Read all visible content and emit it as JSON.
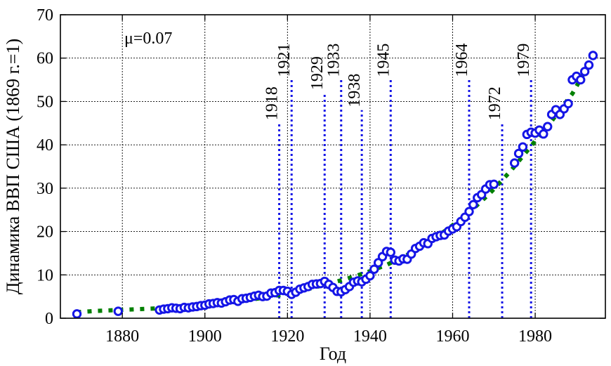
{
  "chart_data": {
    "type": "scatter",
    "xlabel": "Год",
    "ylabel": "Динамика ВВП США (1869 г.=1)",
    "annotation": "μ=0.07",
    "xlim": [
      1865,
      1997
    ],
    "ylim": [
      0,
      70
    ],
    "x_ticks": [
      1880,
      1900,
      1920,
      1940,
      1960,
      1980
    ],
    "y_ticks": [
      0,
      10,
      20,
      30,
      40,
      50,
      60,
      70
    ],
    "grid": true,
    "colors": {
      "observed": "#1515e6",
      "trend": "#008000",
      "events": "#1515e6"
    },
    "event_years": [
      {
        "label": "1918",
        "x": 1918,
        "top": 45
      },
      {
        "label": "1921",
        "x": 1921,
        "top": 55
      },
      {
        "label": "1929",
        "x": 1929,
        "top": 52
      },
      {
        "label": "1933",
        "x": 1933,
        "top": 55
      },
      {
        "label": "1938",
        "x": 1938,
        "top": 48
      },
      {
        "label": "1945",
        "x": 1945,
        "top": 55
      },
      {
        "label": "1964",
        "x": 1964,
        "top": 55
      },
      {
        "label": "1972",
        "x": 1972,
        "top": 45
      },
      {
        "label": "1979",
        "x": 1979,
        "top": 55
      }
    ],
    "series": [
      {
        "values": [
          [
            1869,
            1.0
          ],
          [
            1879,
            1.6
          ],
          [
            1889,
            1.9
          ],
          [
            1890,
            2.1
          ],
          [
            1891,
            2.2
          ],
          [
            1892,
            2.4
          ],
          [
            1893,
            2.3
          ],
          [
            1894,
            2.2
          ],
          [
            1895,
            2.5
          ],
          [
            1896,
            2.4
          ],
          [
            1897,
            2.6
          ],
          [
            1898,
            2.7
          ],
          [
            1899,
            2.9
          ],
          [
            1900,
            3.0
          ],
          [
            1901,
            3.3
          ],
          [
            1902,
            3.4
          ],
          [
            1903,
            3.6
          ],
          [
            1904,
            3.5
          ],
          [
            1905,
            3.8
          ],
          [
            1906,
            4.2
          ],
          [
            1907,
            4.3
          ],
          [
            1908,
            3.9
          ],
          [
            1909,
            4.5
          ],
          [
            1910,
            4.6
          ],
          [
            1911,
            4.8
          ],
          [
            1912,
            5.1
          ],
          [
            1913,
            5.3
          ],
          [
            1914,
            5.0
          ],
          [
            1915,
            5.1
          ],
          [
            1916,
            5.8
          ],
          [
            1917,
            5.9
          ],
          [
            1918,
            6.4
          ],
          [
            1919,
            6.4
          ],
          [
            1920,
            6.2
          ],
          [
            1921,
            5.5
          ],
          [
            1922,
            6.0
          ],
          [
            1923,
            6.7
          ],
          [
            1924,
            7.0
          ],
          [
            1925,
            7.3
          ],
          [
            1926,
            7.8
          ],
          [
            1927,
            7.9
          ],
          [
            1928,
            8.0
          ],
          [
            1929,
            8.5
          ],
          [
            1930,
            7.8
          ],
          [
            1931,
            7.1
          ],
          [
            1932,
            6.2
          ],
          [
            1933,
            6.1
          ],
          [
            1934,
            6.6
          ],
          [
            1935,
            7.3
          ],
          [
            1936,
            8.3
          ],
          [
            1937,
            8.6
          ],
          [
            1938,
            8.4
          ],
          [
            1939,
            9.0
          ],
          [
            1940,
            9.8
          ],
          [
            1941,
            11.3
          ],
          [
            1942,
            12.8
          ],
          [
            1943,
            14.2
          ],
          [
            1944,
            15.4
          ],
          [
            1945,
            15.2
          ],
          [
            1946,
            13.4
          ],
          [
            1947,
            13.2
          ],
          [
            1948,
            13.7
          ],
          [
            1949,
            13.6
          ],
          [
            1950,
            14.8
          ],
          [
            1951,
            16.1
          ],
          [
            1952,
            16.6
          ],
          [
            1953,
            17.4
          ],
          [
            1954,
            17.2
          ],
          [
            1955,
            18.4
          ],
          [
            1956,
            18.8
          ],
          [
            1957,
            19.1
          ],
          [
            1958,
            19.2
          ],
          [
            1959,
            20.1
          ],
          [
            1960,
            20.6
          ],
          [
            1961,
            21.1
          ],
          [
            1962,
            22.3
          ],
          [
            1963,
            23.3
          ],
          [
            1964,
            24.6
          ],
          [
            1965,
            26.2
          ],
          [
            1966,
            27.8
          ],
          [
            1967,
            28.5
          ],
          [
            1968,
            29.8
          ],
          [
            1969,
            30.8
          ],
          [
            1970,
            30.9
          ],
          [
            1975,
            35.8
          ],
          [
            1976,
            38.0
          ],
          [
            1977,
            39.5
          ],
          [
            1978,
            42.4
          ],
          [
            1979,
            42.9
          ],
          [
            1980,
            42.7
          ],
          [
            1981,
            43.4
          ],
          [
            1982,
            42.5
          ],
          [
            1983,
            44.2
          ],
          [
            1984,
            47.0
          ],
          [
            1985,
            48.1
          ],
          [
            1986,
            47.0
          ],
          [
            1987,
            48.3
          ],
          [
            1988,
            49.5
          ],
          [
            1989,
            55.0
          ],
          [
            1990,
            55.8
          ],
          [
            1991,
            55.0
          ],
          [
            1992,
            56.9
          ],
          [
            1993,
            58.4
          ],
          [
            1994,
            60.6
          ]
        ]
      },
      {
        "values": [
          [
            1869,
            1.4
          ],
          [
            1874,
            1.7
          ],
          [
            1879,
            1.9
          ],
          [
            1884,
            2.1
          ],
          [
            1889,
            2.3
          ],
          [
            1894,
            2.5
          ],
          [
            1899,
            2.8
          ],
          [
            1904,
            3.4
          ],
          [
            1909,
            4.0
          ],
          [
            1914,
            4.7
          ],
          [
            1919,
            5.5
          ],
          [
            1924,
            6.5
          ],
          [
            1929,
            7.7
          ],
          [
            1934,
            9.0
          ],
          [
            1939,
            10.5
          ],
          [
            1944,
            12.3
          ],
          [
            1949,
            14.6
          ],
          [
            1954,
            17.4
          ],
          [
            1959,
            20.7
          ],
          [
            1964,
            24.4
          ],
          [
            1969,
            28.8
          ],
          [
            1974,
            33.9
          ],
          [
            1979,
            39.7
          ],
          [
            1984,
            45.5
          ],
          [
            1989,
            51.8
          ],
          [
            1994,
            60.2
          ]
        ]
      }
    ]
  }
}
